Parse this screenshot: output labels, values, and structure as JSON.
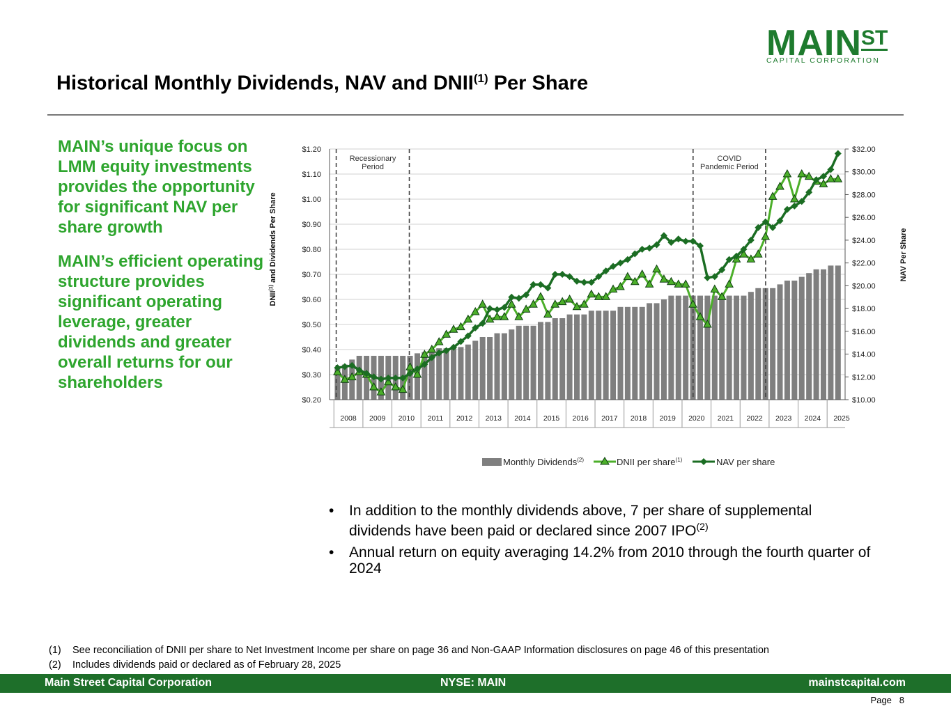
{
  "logo": {
    "main": "MAIN",
    "st": "ST",
    "sub": "CAPITAL CORPORATION"
  },
  "header": {
    "title": "Historical Monthly Dividends, NAV and DNII",
    "title_sup": "(1)",
    "title_suffix": " Per Share"
  },
  "left_panel": {
    "paragraphs": [
      "MAIN’s unique focus on LMM equity investments provides the opportunity for significant NAV per share growth",
      "MAIN’s efficient operating structure provides significant operating leverage, greater dividends and greater overall returns for our shareholders"
    ]
  },
  "bullets": [
    {
      "text": "In addition to the monthly dividends above, 7 per share of supplemental dividends have been paid or declared since 2007 IPO",
      "sup": "(2)"
    },
    {
      "text": "Annual return on equity averaging 14.2% from 2010 through the fourth quarter of 2024",
      "sup": ""
    }
  ],
  "footnotes": [
    {
      "marker": "(1)",
      "text": "See reconciliation of DNII per share to Net Investment Income per share on page 36 and Non-GAAP Information disclosures on page 46 of this presentation"
    },
    {
      "marker": "(2)",
      "text": "Includes dividends paid or declared as of February 28, 2025"
    }
  ],
  "footer": {
    "left": "Main Street Capital Corporation",
    "center": "NYSE: MAIN",
    "right": "mainstcapital.com"
  },
  "page": {
    "label": "Page",
    "number": "8"
  },
  "colors": {
    "brand_green": "#1e7b2e",
    "text_green": "#2ea52e",
    "bar": "#7f7f7f",
    "dnii": "#4caf2a",
    "nav": "#1b6d23"
  },
  "chart_data": {
    "type": "bar",
    "years": [
      "2008",
      "2009",
      "2010",
      "2011",
      "2012",
      "2013",
      "2014",
      "2015",
      "2016",
      "2017",
      "2018",
      "2019",
      "2020",
      "2021",
      "2022",
      "2023",
      "2024",
      "2025"
    ],
    "y_left": {
      "label": "DNII",
      "label_sup": "(1)",
      "label_suffix": " and Dividends Per Share",
      "range": [
        0.2,
        1.2
      ],
      "ticks": [
        "$0.20",
        "$0.30",
        "$0.40",
        "$0.50",
        "$0.60",
        "$0.70",
        "$0.80",
        "$0.90",
        "$1.00",
        "$1.10",
        "$1.20"
      ]
    },
    "y_right": {
      "label": "NAV Per Share",
      "range": [
        10,
        32
      ],
      "ticks": [
        "$10.00",
        "$12.00",
        "$14.00",
        "$16.00",
        "$18.00",
        "$20.00",
        "$22.00",
        "$24.00",
        "$26.00",
        "$28.00",
        "$30.00",
        "$32.00"
      ]
    },
    "annotations": [
      {
        "text": [
          "Recessionary",
          "Period"
        ],
        "start": 2007.58,
        "end": 2010.1
      },
      {
        "text": [
          "COVID",
          "Pandemic Period"
        ],
        "start": 2019.88,
        "end": 2022.38
      }
    ],
    "legend": [
      {
        "name": "Monthly Dividends",
        "sup": "(2)",
        "type": "bar"
      },
      {
        "name": "DNII per share",
        "sup": "(1)",
        "type": "line-triangle"
      },
      {
        "name": "NAV per share",
        "sup": "",
        "type": "line-diamond"
      }
    ],
    "series": [
      {
        "name": "Monthly Dividends",
        "x": [
          2007.5,
          2007.75,
          2008.0,
          2008.25,
          2008.5,
          2008.75,
          2009.0,
          2009.25,
          2009.5,
          2009.75,
          2010.0,
          2010.25,
          2010.5,
          2010.75,
          2011.0,
          2011.25,
          2011.5,
          2011.75,
          2012.0,
          2012.25,
          2012.5,
          2012.75,
          2013.0,
          2013.25,
          2013.5,
          2013.75,
          2014.0,
          2014.25,
          2014.5,
          2014.75,
          2015.0,
          2015.25,
          2015.5,
          2015.75,
          2016.0,
          2016.25,
          2016.5,
          2016.75,
          2017.0,
          2017.25,
          2017.5,
          2017.75,
          2018.0,
          2018.25,
          2018.5,
          2018.75,
          2019.0,
          2019.25,
          2019.5,
          2019.75,
          2020.0,
          2020.25,
          2020.5,
          2020.75,
          2021.0,
          2021.25,
          2021.5,
          2021.75,
          2022.0,
          2022.25,
          2022.5,
          2022.75,
          2023.0,
          2023.25,
          2023.5,
          2023.75,
          2024.0,
          2024.25,
          2024.5,
          2024.75
        ],
        "values": [
          0.33,
          0.34,
          0.36,
          0.375,
          0.375,
          0.375,
          0.375,
          0.375,
          0.375,
          0.375,
          0.375,
          0.385,
          0.39,
          0.39,
          0.405,
          0.405,
          0.405,
          0.41,
          0.42,
          0.435,
          0.45,
          0.45,
          0.465,
          0.465,
          0.48,
          0.495,
          0.495,
          0.495,
          0.51,
          0.51,
          0.525,
          0.525,
          0.54,
          0.54,
          0.54,
          0.555,
          0.555,
          0.555,
          0.555,
          0.57,
          0.57,
          0.57,
          0.57,
          0.585,
          0.585,
          0.6,
          0.615,
          0.615,
          0.615,
          0.615,
          0.615,
          0.615,
          0.615,
          0.615,
          0.615,
          0.615,
          0.615,
          0.63,
          0.645,
          0.645,
          0.645,
          0.66,
          0.675,
          0.675,
          0.69,
          0.705,
          0.72,
          0.72,
          0.735,
          0.735
        ]
      },
      {
        "name": "DNII per share",
        "x": [
          2007.5,
          2007.75,
          2008.0,
          2008.25,
          2008.5,
          2008.75,
          2009.0,
          2009.25,
          2009.5,
          2009.75,
          2010.0,
          2010.25,
          2010.5,
          2010.75,
          2011.0,
          2011.25,
          2011.5,
          2011.75,
          2012.0,
          2012.25,
          2012.5,
          2012.75,
          2013.0,
          2013.25,
          2013.5,
          2013.75,
          2014.0,
          2014.25,
          2014.5,
          2014.75,
          2015.0,
          2015.25,
          2015.5,
          2015.75,
          2016.0,
          2016.25,
          2016.5,
          2016.75,
          2017.0,
          2017.25,
          2017.5,
          2017.75,
          2018.0,
          2018.25,
          2018.5,
          2018.75,
          2019.0,
          2019.25,
          2019.5,
          2019.75,
          2020.0,
          2020.25,
          2020.5,
          2020.75,
          2021.0,
          2021.25,
          2021.5,
          2021.75,
          2022.0,
          2022.25,
          2022.5,
          2022.75,
          2023.0,
          2023.25,
          2023.5,
          2023.75,
          2024.0,
          2024.25,
          2024.5,
          2024.75
        ],
        "values": [
          0.31,
          0.28,
          0.29,
          0.31,
          0.3,
          0.25,
          0.23,
          0.27,
          0.25,
          0.24,
          0.33,
          0.3,
          0.38,
          0.4,
          0.43,
          0.46,
          0.48,
          0.49,
          0.52,
          0.55,
          0.58,
          0.52,
          0.53,
          0.53,
          0.58,
          0.53,
          0.56,
          0.58,
          0.61,
          0.54,
          0.58,
          0.59,
          0.6,
          0.57,
          0.58,
          0.62,
          0.61,
          0.61,
          0.64,
          0.65,
          0.69,
          0.67,
          0.7,
          0.66,
          0.72,
          0.68,
          0.67,
          0.66,
          0.66,
          0.58,
          0.53,
          0.5,
          0.64,
          0.61,
          0.66,
          0.76,
          0.78,
          0.76,
          0.78,
          0.85,
          1.01,
          1.05,
          1.1,
          1.0,
          1.1,
          1.09,
          1.07,
          1.06,
          1.08,
          1.08
        ]
      },
      {
        "name": "NAV per share",
        "x": [
          2007.5,
          2007.75,
          2008.0,
          2008.25,
          2008.5,
          2008.75,
          2009.0,
          2009.25,
          2009.5,
          2009.75,
          2010.0,
          2010.25,
          2010.5,
          2010.75,
          2011.0,
          2011.25,
          2011.5,
          2011.75,
          2012.0,
          2012.25,
          2012.5,
          2012.75,
          2013.0,
          2013.25,
          2013.5,
          2013.75,
          2014.0,
          2014.25,
          2014.5,
          2014.75,
          2015.0,
          2015.25,
          2015.5,
          2015.75,
          2016.0,
          2016.25,
          2016.5,
          2016.75,
          2017.0,
          2017.25,
          2017.5,
          2017.75,
          2018.0,
          2018.25,
          2018.5,
          2018.75,
          2019.0,
          2019.25,
          2019.5,
          2019.75,
          2020.0,
          2020.25,
          2020.5,
          2020.75,
          2021.0,
          2021.25,
          2021.5,
          2021.75,
          2022.0,
          2022.25,
          2022.5,
          2022.75,
          2023.0,
          2023.25,
          2023.5,
          2023.75,
          2024.0,
          2024.25,
          2024.5,
          2024.75
        ],
        "values": [
          12.8,
          12.9,
          13.0,
          12.6,
          12.3,
          12.0,
          11.8,
          11.9,
          11.9,
          11.9,
          12.3,
          12.7,
          13.1,
          13.7,
          14.1,
          14.3,
          14.6,
          15.1,
          15.6,
          16.3,
          16.7,
          18.0,
          17.9,
          18.1,
          19.0,
          18.9,
          19.2,
          20.1,
          20.1,
          19.8,
          21.0,
          21.0,
          20.8,
          20.4,
          20.3,
          20.3,
          20.8,
          21.3,
          21.7,
          22.0,
          22.3,
          22.8,
          23.2,
          23.3,
          23.6,
          24.4,
          23.8,
          24.1,
          23.9,
          23.9,
          23.5,
          20.7,
          20.8,
          21.4,
          22.3,
          22.6,
          23.2,
          24.0,
          25.1,
          25.6,
          25.1,
          25.7,
          26.7,
          27.0,
          27.4,
          28.2,
          29.3,
          29.6,
          30.2,
          31.6
        ]
      }
    ]
  }
}
